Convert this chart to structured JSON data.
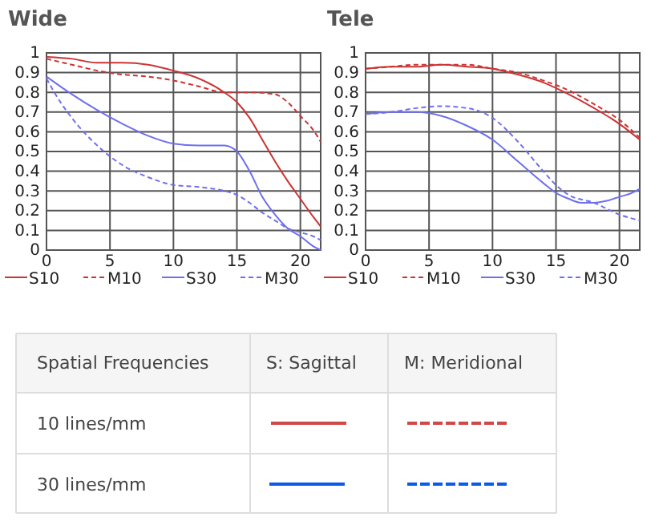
{
  "chart_data": [
    {
      "type": "line",
      "title": "Wide",
      "xlim": [
        0,
        21.6
      ],
      "ylim": [
        0,
        1
      ],
      "xticks": [
        0,
        5,
        10,
        15,
        20
      ],
      "yticks": [
        0,
        0.1,
        0.2,
        0.3,
        0.4,
        0.5,
        0.6,
        0.7,
        0.8,
        0.9,
        1
      ],
      "grid": true,
      "legend": "bottom",
      "series": [
        {
          "name": "S10",
          "color": "#cc3333",
          "line_style": "solid",
          "x": [
            0,
            2,
            4,
            6,
            8,
            10,
            12,
            14,
            15,
            16,
            17,
            18,
            19,
            20,
            21,
            21.6
          ],
          "values": [
            0.98,
            0.97,
            0.95,
            0.95,
            0.94,
            0.91,
            0.87,
            0.8,
            0.75,
            0.67,
            0.56,
            0.45,
            0.35,
            0.26,
            0.17,
            0.12
          ]
        },
        {
          "name": "M10",
          "color": "#cc3333",
          "line_style": "dashed",
          "x": [
            0,
            2,
            4,
            6,
            8,
            10,
            12,
            14,
            16,
            18,
            19,
            20,
            21,
            21.6
          ],
          "values": [
            0.97,
            0.94,
            0.91,
            0.89,
            0.88,
            0.86,
            0.83,
            0.8,
            0.8,
            0.79,
            0.75,
            0.68,
            0.61,
            0.55
          ]
        },
        {
          "name": "S30",
          "color": "#6f6fee",
          "line_style": "solid",
          "x": [
            0,
            2,
            4,
            6,
            8,
            10,
            12,
            14,
            15,
            16,
            17,
            18,
            19,
            20,
            21,
            21.6
          ],
          "values": [
            0.88,
            0.79,
            0.71,
            0.64,
            0.58,
            0.54,
            0.53,
            0.53,
            0.5,
            0.4,
            0.27,
            0.18,
            0.11,
            0.07,
            0.02,
            0.0
          ]
        },
        {
          "name": "M30",
          "color": "#6f6fee",
          "line_style": "dashed",
          "x": [
            0,
            1,
            2,
            4,
            6,
            8,
            10,
            12,
            14,
            15,
            16,
            17,
            18,
            19,
            20,
            21,
            21.6
          ],
          "values": [
            0.87,
            0.76,
            0.67,
            0.53,
            0.43,
            0.37,
            0.33,
            0.32,
            0.3,
            0.28,
            0.24,
            0.19,
            0.15,
            0.11,
            0.09,
            0.07,
            0.05
          ]
        }
      ]
    },
    {
      "type": "line",
      "title": "Tele",
      "xlim": [
        0,
        21.6
      ],
      "ylim": [
        0,
        1
      ],
      "xticks": [
        0,
        5,
        10,
        15,
        20
      ],
      "yticks": [
        0,
        0.1,
        0.2,
        0.3,
        0.4,
        0.5,
        0.6,
        0.7,
        0.8,
        0.9,
        1
      ],
      "grid": true,
      "legend": "bottom",
      "series": [
        {
          "name": "S10",
          "color": "#cc3333",
          "line_style": "solid",
          "x": [
            0,
            2,
            4,
            6,
            8,
            10,
            12,
            14,
            16,
            18,
            20,
            21.6
          ],
          "values": [
            0.92,
            0.93,
            0.93,
            0.94,
            0.93,
            0.92,
            0.89,
            0.85,
            0.79,
            0.72,
            0.64,
            0.56
          ]
        },
        {
          "name": "M10",
          "color": "#cc3333",
          "line_style": "dashed",
          "x": [
            0,
            2,
            4,
            6,
            8,
            10,
            12,
            14,
            16,
            18,
            20,
            21.6
          ],
          "values": [
            0.92,
            0.93,
            0.94,
            0.94,
            0.94,
            0.92,
            0.9,
            0.86,
            0.81,
            0.74,
            0.66,
            0.57
          ]
        },
        {
          "name": "S30",
          "color": "#6f6fee",
          "line_style": "solid",
          "x": [
            0,
            2,
            4,
            6,
            8,
            10,
            12,
            14,
            15,
            16,
            17,
            18,
            19,
            20,
            21,
            21.6
          ],
          "values": [
            0.69,
            0.7,
            0.7,
            0.68,
            0.63,
            0.56,
            0.45,
            0.34,
            0.29,
            0.26,
            0.24,
            0.24,
            0.25,
            0.27,
            0.29,
            0.31
          ]
        },
        {
          "name": "M30",
          "color": "#6f6fee",
          "line_style": "dashed",
          "x": [
            0,
            2,
            4,
            6,
            8,
            10,
            12,
            14,
            15,
            16,
            18,
            20,
            21,
            21.6
          ],
          "values": [
            0.69,
            0.7,
            0.72,
            0.73,
            0.72,
            0.67,
            0.55,
            0.4,
            0.33,
            0.28,
            0.24,
            0.18,
            0.16,
            0.15
          ]
        }
      ]
    },
    {
      "type": "other",
      "annotations": [
        "Spatial Frequencies",
        "S: Sagittal",
        "M: Meridional",
        "10 lines/mm",
        "30 lines/mm"
      ]
    }
  ]
}
